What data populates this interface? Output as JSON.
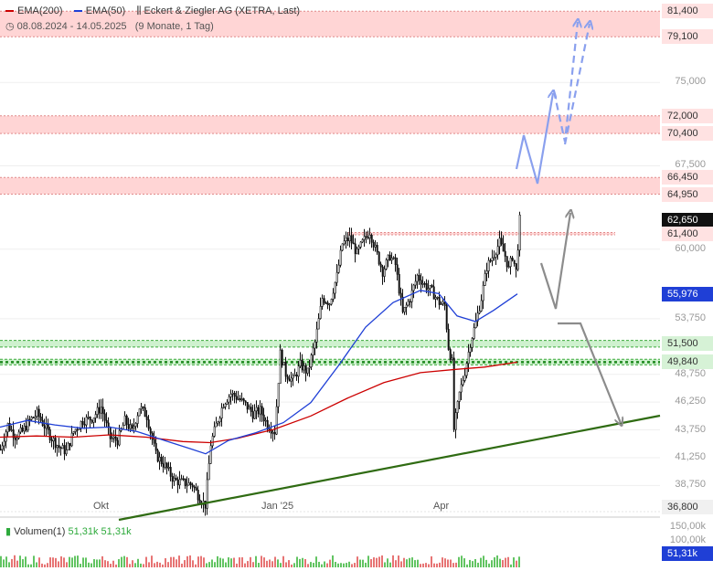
{
  "header": {
    "legend": [
      {
        "name": "EMA(200)",
        "color": "#cc0000"
      },
      {
        "name": "EMA(50)",
        "color": "#1f3fd6"
      }
    ],
    "instrument": "Eckert & Ziegler AG (XETRA, Last)",
    "range": "08.08.2024 - 14.05.2025",
    "period": "(9 Monate, 1 Tag)"
  },
  "volume_header": {
    "label": "Volumen(1)",
    "value1": "51,31k",
    "value2": "51,31k"
  },
  "colors": {
    "up": "#2eaa3c",
    "down": "#111111",
    "resistance": "#ffd0d0",
    "support": "#c9efc9",
    "trend": "#2f6b12",
    "ema50": "#1f3fd6",
    "ema200": "#cc0000",
    "arrow_blue": "#8aa0ee",
    "arrow_grey": "#8c8c8c"
  },
  "chart_data": {
    "type": "line",
    "title": "Eckert & Ziegler AG (XETRA, Last)",
    "x_range": [
      "08.08.2024",
      "14.05.2025"
    ],
    "x_ticks": [
      "Okt",
      "Jan '25",
      "Apr"
    ],
    "ylim": [
      36400,
      82000
    ],
    "y_ticks": [
      "75,000",
      "67,500",
      "60,000",
      "53,750",
      "48,750",
      "46,250",
      "43,750",
      "41,250",
      "38,750"
    ],
    "price_badges": [
      {
        "label": "81,400",
        "value": 81400,
        "kind": "resistance"
      },
      {
        "label": "79,100",
        "value": 79100,
        "kind": "resistance"
      },
      {
        "label": "72,000",
        "value": 72000,
        "kind": "resistance"
      },
      {
        "label": "70,400",
        "value": 70400,
        "kind": "resistance"
      },
      {
        "label": "66,450",
        "value": 66450,
        "kind": "resistance"
      },
      {
        "label": "64,950",
        "value": 64950,
        "kind": "resistance"
      },
      {
        "label": "62,650",
        "value": 62650,
        "kind": "last"
      },
      {
        "label": "61,400",
        "value": 61400,
        "kind": "resistance"
      },
      {
        "label": "55,976",
        "value": 55976,
        "kind": "ema50"
      },
      {
        "label": "51,500",
        "value": 51500,
        "kind": "support"
      },
      {
        "label": "49,840",
        "value": 49840,
        "kind": "support"
      },
      {
        "label": "36,800",
        "value": 36800,
        "kind": "plain"
      }
    ],
    "zones": [
      {
        "from": 79100,
        "to": 81400,
        "kind": "resistance"
      },
      {
        "from": 70400,
        "to": 72000,
        "kind": "resistance"
      },
      {
        "from": 64950,
        "to": 66450,
        "kind": "resistance"
      },
      {
        "from": 61300,
        "to": 61500,
        "kind": "resistance",
        "partial": true
      },
      {
        "from": 51200,
        "to": 51800,
        "kind": "support"
      },
      {
        "from": 49600,
        "to": 50100,
        "kind": "support"
      }
    ],
    "price_close": [
      [
        0,
        42000
      ],
      [
        8,
        44200
      ],
      [
        16,
        43200
      ],
      [
        24,
        43600
      ],
      [
        32,
        44600
      ],
      [
        40,
        45200
      ],
      [
        48,
        44100
      ],
      [
        56,
        43000
      ],
      [
        64,
        42200
      ],
      [
        72,
        41800
      ],
      [
        80,
        43600
      ],
      [
        90,
        44600
      ],
      [
        100,
        44800
      ],
      [
        110,
        45800
      ],
      [
        120,
        43000
      ],
      [
        128,
        42800
      ],
      [
        136,
        44600
      ],
      [
        144,
        43600
      ],
      [
        152,
        45800
      ],
      [
        160,
        45000
      ],
      [
        170,
        41500
      ],
      [
        180,
        40500
      ],
      [
        190,
        39200
      ],
      [
        200,
        39000
      ],
      [
        210,
        38800
      ],
      [
        218,
        37600
      ],
      [
        224,
        37000
      ],
      [
        230,
        42500
      ],
      [
        236,
        44200
      ],
      [
        244,
        46200
      ],
      [
        252,
        47000
      ],
      [
        260,
        46600
      ],
      [
        268,
        46000
      ],
      [
        276,
        45200
      ],
      [
        284,
        45500
      ],
      [
        292,
        44200
      ],
      [
        300,
        43600
      ],
      [
        306,
        50600
      ],
      [
        312,
        48800
      ],
      [
        320,
        48200
      ],
      [
        328,
        49600
      ],
      [
        336,
        48900
      ],
      [
        344,
        51600
      ],
      [
        352,
        55600
      ],
      [
        360,
        55200
      ],
      [
        368,
        57600
      ],
      [
        374,
        60500
      ],
      [
        382,
        61000
      ],
      [
        390,
        59600
      ],
      [
        396,
        60600
      ],
      [
        404,
        61600
      ],
      [
        410,
        60000
      ],
      [
        418,
        58000
      ],
      [
        426,
        59400
      ],
      [
        432,
        58600
      ],
      [
        440,
        54200
      ],
      [
        448,
        55600
      ],
      [
        456,
        57600
      ],
      [
        464,
        56800
      ],
      [
        472,
        56200
      ],
      [
        480,
        55200
      ],
      [
        486,
        54900
      ],
      [
        490,
        51200
      ],
      [
        494,
        49800
      ],
      [
        496,
        43800
      ],
      [
        502,
        47000
      ],
      [
        508,
        49000
      ],
      [
        514,
        51600
      ],
      [
        520,
        53400
      ],
      [
        526,
        55600
      ],
      [
        532,
        58400
      ],
      [
        540,
        59600
      ],
      [
        546,
        60600
      ],
      [
        552,
        59400
      ],
      [
        556,
        58200
      ],
      [
        560,
        59400
      ],
      [
        564,
        58000
      ],
      [
        568,
        62650
      ]
    ],
    "ema50": [
      [
        0,
        44000
      ],
      [
        30,
        44600
      ],
      [
        60,
        44200
      ],
      [
        90,
        43900
      ],
      [
        120,
        44000
      ],
      [
        150,
        43600
      ],
      [
        180,
        42800
      ],
      [
        210,
        42000
      ],
      [
        225,
        41600
      ],
      [
        250,
        42800
      ],
      [
        280,
        43500
      ],
      [
        310,
        44400
      ],
      [
        340,
        46200
      ],
      [
        370,
        49500
      ],
      [
        400,
        53000
      ],
      [
        430,
        55200
      ],
      [
        460,
        56300
      ],
      [
        480,
        56000
      ],
      [
        500,
        54000
      ],
      [
        520,
        53500
      ],
      [
        540,
        54500
      ],
      [
        566,
        55976
      ]
    ],
    "ema200": [
      [
        0,
        43100
      ],
      [
        40,
        43200
      ],
      [
        80,
        43100
      ],
      [
        120,
        43300
      ],
      [
        160,
        43100
      ],
      [
        200,
        42700
      ],
      [
        230,
        42600
      ],
      [
        260,
        43000
      ],
      [
        300,
        43800
      ],
      [
        340,
        45000
      ],
      [
        380,
        46600
      ],
      [
        420,
        48000
      ],
      [
        460,
        48900
      ],
      [
        500,
        49200
      ],
      [
        530,
        49400
      ],
      [
        566,
        49840
      ]
    ],
    "volume": {
      "ticks": [
        "150,00k",
        "100,00k"
      ],
      "last": "51,31k",
      "ylim": [
        0,
        170000
      ]
    }
  }
}
